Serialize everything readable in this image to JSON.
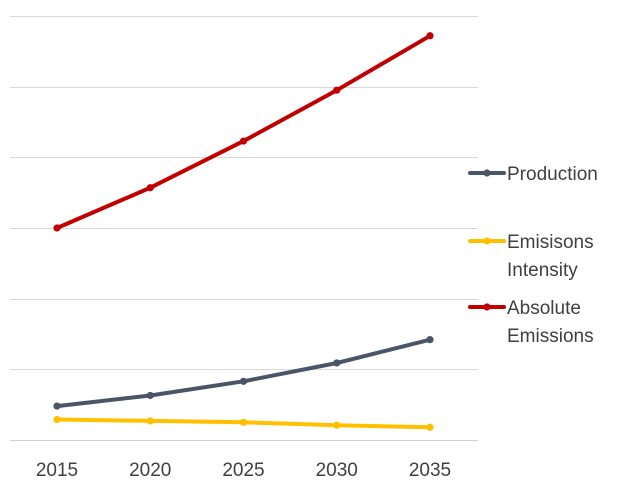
{
  "chart_data": {
    "type": "line",
    "title": "",
    "xlabel": "",
    "ylabel": "",
    "x": [
      "2015",
      "2020",
      "2025",
      "2030",
      "2035"
    ],
    "ylim": [
      0,
      6
    ],
    "yticks": [
      0,
      1,
      2,
      3,
      4,
      5,
      6
    ],
    "show_y_tick_labels": false,
    "grid": "horizontal",
    "legend_position": "right",
    "series": [
      {
        "name": "Production",
        "color": "#4a5568",
        "values": [
          0.48,
          0.63,
          0.83,
          1.09,
          1.42
        ],
        "label_lines": [
          "Production"
        ]
      },
      {
        "name": "Emisisons Intensity",
        "color": "#ffc000",
        "values": [
          0.29,
          0.27,
          0.25,
          0.21,
          0.18
        ],
        "label_lines": [
          "Emisisons",
          "Intensity"
        ]
      },
      {
        "name": "Absolute Emissions",
        "color": "#c00000",
        "values": [
          3.0,
          3.57,
          4.23,
          4.95,
          5.72
        ],
        "label_lines": [
          "Absolute",
          "Emissions"
        ]
      }
    ]
  }
}
